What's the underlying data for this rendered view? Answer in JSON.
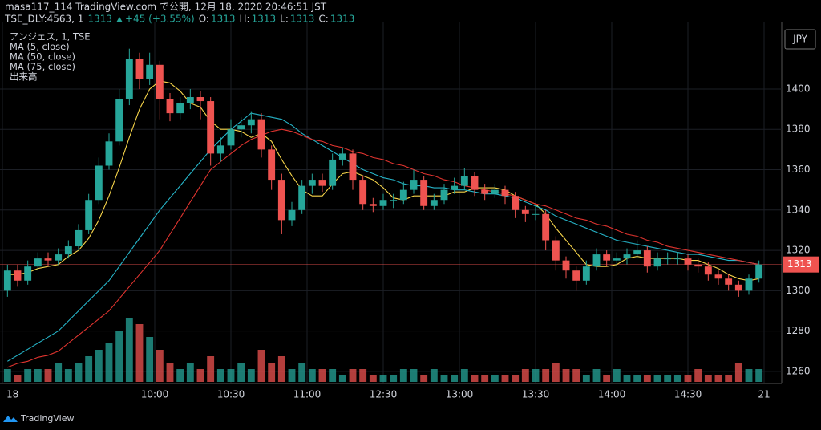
{
  "chart_data": {
    "type": "candlestick",
    "publisher": "masa117_114 TradingView.com で公開, 12月 18, 2020 20:46:51 JST",
    "symbol": "TSE_DLY:4563, 1",
    "header_last": 1313,
    "change": "+45 (+3.55%)",
    "ohlc_legend": [
      {
        "label": "O:",
        "value": 1313
      },
      {
        "label": "H:",
        "value": 1313
      },
      {
        "label": "L:",
        "value": 1313
      },
      {
        "label": "C:",
        "value": 1313
      }
    ],
    "legend": [
      "アンジェス, 1, TSE",
      "MA (5, close)",
      "MA (50, close)",
      "MA (75, close)",
      "出来高"
    ],
    "currency": "JPY",
    "brand": "TradingView",
    "last_price": 1313,
    "up_color": "#26a69a",
    "down_color": "#ef5350",
    "grid": true,
    "xlim": [
      0,
      75
    ],
    "xticks": [
      {
        "value": 0,
        "label": "18"
      },
      {
        "value": 15,
        "label": "10:00"
      },
      {
        "value": 22.5,
        "label": "10:30"
      },
      {
        "value": 30,
        "label": "11:00"
      },
      {
        "value": 37.5,
        "label": "12:30"
      },
      {
        "value": 45,
        "label": "13:00"
      },
      {
        "value": 52.5,
        "label": "13:30"
      },
      {
        "value": 60,
        "label": "14:00"
      },
      {
        "value": 67.5,
        "label": "14:30"
      },
      {
        "value": 75,
        "label": "21"
      }
    ],
    "ylim": [
      1254,
      1433
    ],
    "yticks": [
      1260,
      1280,
      1300,
      1320,
      1340,
      1360,
      1380,
      1400
    ],
    "open": [
      1300,
      1310,
      1305,
      1312,
      1316,
      1315,
      1318,
      1322,
      1330,
      1345,
      1362,
      1374,
      1395,
      1415,
      1405,
      1412,
      1395,
      1388,
      1393,
      1396,
      1394,
      1368,
      1372,
      1380,
      1382,
      1385,
      1370,
      1355,
      1335,
      1340,
      1352,
      1355,
      1352,
      1365,
      1368,
      1355,
      1343,
      1342,
      1345,
      1345,
      1350,
      1355,
      1342,
      1345,
      1350,
      1352,
      1357,
      1350,
      1348,
      1350,
      1347,
      1340,
      1338,
      1338,
      1325,
      1315,
      1310,
      1305,
      1312,
      1318,
      1315,
      1316,
      1318,
      1320,
      1312,
      1316,
      1316,
      1316,
      1313,
      1312,
      1308,
      1306,
      1303,
      1300,
      1306
    ],
    "high": [
      1313,
      1313,
      1315,
      1319,
      1319,
      1321,
      1325,
      1333,
      1348,
      1366,
      1378,
      1400,
      1420,
      1418,
      1418,
      1414,
      1398,
      1396,
      1400,
      1399,
      1396,
      1376,
      1385,
      1386,
      1389,
      1388,
      1372,
      1358,
      1344,
      1355,
      1358,
      1358,
      1368,
      1371,
      1370,
      1357,
      1346,
      1348,
      1348,
      1354,
      1360,
      1357,
      1348,
      1353,
      1356,
      1361,
      1359,
      1353,
      1353,
      1352,
      1349,
      1342,
      1342,
      1340,
      1327,
      1317,
      1312,
      1315,
      1321,
      1320,
      1319,
      1321,
      1325,
      1322,
      1319,
      1319,
      1319,
      1318,
      1316,
      1314,
      1310,
      1308,
      1305,
      1308,
      1315
    ],
    "low": [
      1297,
      1302,
      1303,
      1310,
      1312,
      1313,
      1316,
      1320,
      1328,
      1343,
      1360,
      1372,
      1392,
      1400,
      1402,
      1385,
      1384,
      1385,
      1390,
      1385,
      1362,
      1364,
      1370,
      1376,
      1378,
      1366,
      1350,
      1328,
      1332,
      1338,
      1348,
      1349,
      1350,
      1362,
      1350,
      1340,
      1339,
      1340,
      1341,
      1343,
      1348,
      1340,
      1340,
      1343,
      1348,
      1350,
      1347,
      1345,
      1346,
      1343,
      1336,
      1334,
      1335,
      1320,
      1310,
      1306,
      1300,
      1303,
      1310,
      1312,
      1312,
      1313,
      1316,
      1309,
      1310,
      1313,
      1313,
      1310,
      1309,
      1305,
      1303,
      1300,
      1297,
      1298,
      1304
    ],
    "close": [
      1310,
      1305,
      1312,
      1316,
      1315,
      1318,
      1322,
      1330,
      1345,
      1362,
      1374,
      1395,
      1415,
      1405,
      1412,
      1395,
      1388,
      1393,
      1396,
      1394,
      1368,
      1372,
      1380,
      1382,
      1385,
      1370,
      1355,
      1335,
      1340,
      1352,
      1355,
      1352,
      1365,
      1368,
      1355,
      1343,
      1342,
      1345,
      1345,
      1350,
      1355,
      1342,
      1345,
      1350,
      1352,
      1357,
      1350,
      1348,
      1350,
      1347,
      1340,
      1338,
      1338,
      1325,
      1315,
      1310,
      1305,
      1312,
      1318,
      1315,
      1316,
      1318,
      1320,
      1312,
      1316,
      1316,
      1316,
      1313,
      1312,
      1308,
      1306,
      1303,
      1300,
      1306,
      1313
    ],
    "volume": [
      2,
      1,
      2,
      2,
      2,
      3,
      2,
      3,
      4,
      5,
      6,
      8,
      10,
      9,
      7,
      5,
      3,
      2,
      3,
      2,
      4,
      2,
      2,
      3,
      2,
      5,
      3,
      4,
      2,
      3,
      2,
      2,
      2,
      1,
      2,
      2,
      1,
      1,
      1,
      2,
      2,
      1,
      2,
      1,
      1,
      2,
      1,
      1,
      1,
      1,
      1,
      2,
      2,
      2,
      3,
      2,
      2,
      1,
      2,
      1,
      2,
      1,
      1,
      1,
      1,
      1,
      1,
      1,
      2,
      1,
      1,
      1,
      3,
      2,
      2
    ],
    "series": [
      {
        "name": "MA (5, close)",
        "color": "#f7d54a",
        "values": [
          1308,
          1308,
          1309,
          1311,
          1312,
          1313,
          1317,
          1320,
          1326,
          1335,
          1347,
          1361,
          1376,
          1390,
          1400,
          1404,
          1403,
          1399,
          1393,
          1391,
          1384,
          1380,
          1380,
          1379,
          1376,
          1378,
          1374,
          1365,
          1357,
          1350,
          1347,
          1347,
          1353,
          1358,
          1359,
          1357,
          1355,
          1351,
          1346,
          1345,
          1347,
          1347,
          1347,
          1347,
          1349,
          1349,
          1351,
          1351,
          1351,
          1350,
          1347,
          1345,
          1343,
          1338,
          1331,
          1325,
          1319,
          1313,
          1312,
          1312,
          1313,
          1316,
          1317,
          1316,
          1316,
          1316,
          1316,
          1315,
          1315,
          1313,
          1311,
          1308,
          1306,
          1305,
          1306
        ]
      },
      {
        "name": "MA (50, close)",
        "color": "#26b5c9",
        "values": [
          1265,
          1268,
          1271,
          1274,
          1277,
          1280,
          1285,
          1290,
          1295,
          1300,
          1305,
          1312,
          1319,
          1326,
          1333,
          1340,
          1346,
          1352,
          1358,
          1364,
          1370,
          1375,
          1380,
          1384,
          1388,
          1387,
          1386,
          1385,
          1382,
          1378,
          1375,
          1372,
          1369,
          1366,
          1363,
          1360,
          1358,
          1356,
          1355,
          1353,
          1352,
          1352,
          1351,
          1351,
          1350,
          1350,
          1349,
          1348,
          1348,
          1347,
          1346,
          1344,
          1342,
          1340,
          1337,
          1335,
          1333,
          1331,
          1329,
          1327,
          1325,
          1324,
          1323,
          1322,
          1321,
          1320,
          1319,
          1318,
          1318,
          1317,
          1316,
          1315,
          1315,
          1314,
          1313
        ]
      },
      {
        "name": "MA (75, close)",
        "color": "#e0342f",
        "values": [
          1262,
          1264,
          1265,
          1267,
          1268,
          1270,
          1274,
          1278,
          1282,
          1286,
          1290,
          1296,
          1302,
          1308,
          1314,
          1320,
          1328,
          1336,
          1344,
          1352,
          1360,
          1364,
          1368,
          1372,
          1375,
          1377,
          1379,
          1380,
          1379,
          1377,
          1375,
          1374,
          1372,
          1371,
          1369,
          1368,
          1366,
          1365,
          1363,
          1362,
          1360,
          1358,
          1357,
          1355,
          1354,
          1352,
          1351,
          1350,
          1349,
          1348,
          1347,
          1345,
          1343,
          1342,
          1340,
          1338,
          1336,
          1335,
          1333,
          1332,
          1330,
          1328,
          1327,
          1325,
          1324,
          1322,
          1321,
          1320,
          1319,
          1318,
          1317,
          1316,
          1315,
          1314,
          1313
        ]
      }
    ]
  }
}
